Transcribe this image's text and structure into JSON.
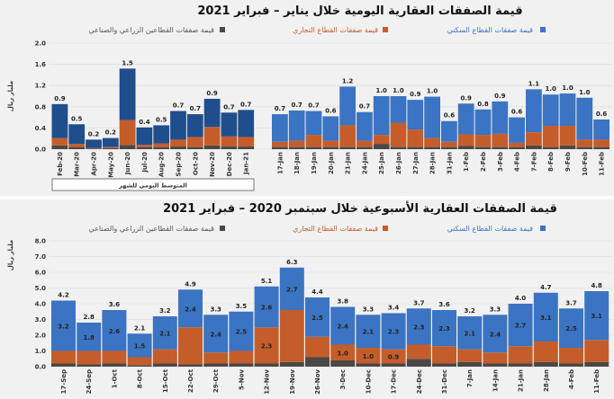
{
  "colors": {
    "residential_monthly": "#1f4e8c",
    "residential": "#3b74c2",
    "commercial": "#c45d2a",
    "agri_industrial": "#4b4845",
    "background": "#f1f1f1"
  },
  "chart_data": [
    {
      "type": "bar",
      "stacked": true,
      "title": "قيمة الصفقات العقارية اليومية خلال يناير – فبراير 2021",
      "ylabel": "مليار ريال",
      "ylim": [
        0,
        2.0
      ],
      "yticks": [
        "0.0",
        "0.4",
        "0.8",
        "1.2",
        "1.6",
        "2.0"
      ],
      "grid": true,
      "legend_position": "top",
      "legend": [
        "قيمة صفقات القطاع السكني",
        "قيمة صفقات القطاع التجاري",
        "قيمة صفقات القطاعين الزراعي والصناعي"
      ],
      "monthly_group_label": "المتوسط اليومي للشهر",
      "monthly": {
        "categories": [
          "Feb-20",
          "Mar-20",
          "Apr-20",
          "May-20",
          "Jun-20",
          "Jul-20",
          "Aug-20",
          "Sep-20",
          "Oct-20",
          "Nov-20",
          "Dec-20",
          "Jan-21"
        ],
        "total_labels": [
          "0.9",
          "0.5",
          "0.2",
          "0.2",
          "1.5",
          "0.4",
          "0.5",
          "0.7",
          "0.7",
          "0.9",
          "0.7",
          "0.7"
        ],
        "series": [
          {
            "name": "قيمة صفقات القطاعين الزراعي والصناعي",
            "values": [
              0.07,
              0.04,
              0.01,
              0.02,
              0.08,
              0.04,
              0.04,
              0.05,
              0.04,
              0.07,
              0.05,
              0.05
            ]
          },
          {
            "name": "قيمة صفقات القطاع التجاري",
            "values": [
              0.14,
              0.06,
              0.01,
              0.02,
              0.47,
              0.04,
              0.07,
              0.13,
              0.19,
              0.35,
              0.19,
              0.18
            ]
          },
          {
            "name": "قيمة صفقات القطاع السكني",
            "values": [
              0.64,
              0.37,
              0.16,
              0.17,
              0.97,
              0.33,
              0.34,
              0.54,
              0.43,
              0.53,
              0.45,
              0.51
            ]
          }
        ]
      },
      "daily": {
        "categories": [
          "17-Jan",
          "18-Jan",
          "19-Jan",
          "20-Jan",
          "21-Jan",
          "24-Jan",
          "25-Jan",
          "26-Jan",
          "27-Jan",
          "28-Jan",
          "31-Jan",
          "1-Feb",
          "2-Feb",
          "3-Feb",
          "4-Feb",
          "7-Feb",
          "8-Feb",
          "9-Feb",
          "10-Feb",
          "11-Feb"
        ],
        "total_labels": [
          "0.7",
          "0.7",
          "0.7",
          "0.6",
          "1.2",
          "0.7",
          "1.0",
          "1.0",
          "0.9",
          "1.0",
          "0.6",
          "0.9",
          "0.8",
          "0.9",
          "0.6",
          "1.1",
          "1.0",
          "1.0",
          "1.0",
          "0.6"
        ],
        "series": [
          {
            "name": "قيمة صفقات القطاعين الزراعي والصناعي",
            "values": [
              0.04,
              0.04,
              0.04,
              0.04,
              0.04,
              0.04,
              0.1,
              0.04,
              0.04,
              0.04,
              0.04,
              0.06,
              0.04,
              0.04,
              0.04,
              0.07,
              0.04,
              0.07,
              0.04,
              0.04
            ]
          },
          {
            "name": "قيمة صفقات القطاع التجاري",
            "values": [
              0.1,
              0.12,
              0.23,
              0.12,
              0.41,
              0.12,
              0.17,
              0.46,
              0.33,
              0.17,
              0.1,
              0.22,
              0.23,
              0.25,
              0.08,
              0.25,
              0.4,
              0.37,
              0.14,
              0.14
            ]
          },
          {
            "name": "قيمة صفقات القطاع السكني",
            "values": [
              0.52,
              0.57,
              0.45,
              0.46,
              0.73,
              0.54,
              0.73,
              0.5,
              0.56,
              0.78,
              0.39,
              0.58,
              0.48,
              0.61,
              0.48,
              0.81,
              0.59,
              0.61,
              0.79,
              0.38
            ]
          }
        ]
      }
    },
    {
      "type": "bar",
      "stacked": true,
      "title": "قيمة الصفقات العقارية الأسبوعية خلال سبتمبر 2020 – فبراير 2021",
      "ylabel": "مليار ريال",
      "ylim": [
        0,
        8.0
      ],
      "yticks": [
        "0.0",
        "1.0",
        "2.0",
        "3.0",
        "4.0",
        "5.0",
        "6.0",
        "7.0",
        "8.0"
      ],
      "grid": true,
      "legend_position": "top",
      "legend": [
        "قيمة صفقات القطاع السكني",
        "قيمة صفقات القطاع التجاري",
        "قيمة صفقات القطاعين الزراعي والصناعي"
      ],
      "categories": [
        "17-Sep",
        "24-Sep",
        "1-Oct",
        "8-Oct",
        "15-Oct",
        "22-Oct",
        "29-Oct",
        "5-Nov",
        "12-Nov",
        "19-Nov",
        "26-Nov",
        "3-Dec",
        "10-Dec",
        "17-Dec",
        "24-Dec",
        "31-Dec",
        "7-Jan",
        "14-Jan",
        "21-Jan",
        "28-Jan",
        "4-Feb",
        "11-Feb"
      ],
      "total_labels": [
        "4.2",
        "2.8",
        "3.6",
        "2.1",
        "3.2",
        "4.9",
        "3.3",
        "3.5",
        "5.1",
        "6.3",
        "4.4",
        "3.8",
        "3.3",
        "3.4",
        "3.7",
        "3.6",
        "3.2",
        "3.3",
        "4.0",
        "4.7",
        "3.7",
        "4.8"
      ],
      "residential_labels": [
        "3.2",
        "1.8",
        "2.6",
        "1.5",
        "2.1",
        "2.4",
        "2.4",
        "2.5",
        "2.6",
        "2.7",
        "2.5",
        "2.4",
        "2.1",
        "2.3",
        "2.3",
        "2.3",
        "2.1",
        "2.4",
        "2.7",
        "3.1",
        "2.5",
        "3.1"
      ],
      "commercial_labels": [
        null,
        null,
        null,
        null,
        null,
        null,
        null,
        null,
        "2.3",
        null,
        null,
        "1.0",
        "1.0",
        "0.9",
        null,
        null,
        null,
        null,
        null,
        null,
        null,
        null
      ],
      "series": [
        {
          "name": "قيمة صفقات القطاعين الزراعي والصناعي",
          "values": [
            0.2,
            0.15,
            0.2,
            0.1,
            0.2,
            0.15,
            0.2,
            0.2,
            0.2,
            0.3,
            0.6,
            0.4,
            0.2,
            0.2,
            0.5,
            0.2,
            0.3,
            0.2,
            0.2,
            0.3,
            0.2,
            0.3
          ]
        },
        {
          "name": "قيمة صفقات القطاع التجاري",
          "values": [
            0.8,
            0.85,
            0.8,
            0.5,
            0.9,
            2.35,
            0.7,
            0.8,
            2.3,
            3.3,
            1.3,
            1.0,
            1.0,
            0.9,
            0.9,
            1.1,
            0.8,
            0.7,
            1.1,
            1.3,
            1.0,
            1.4
          ]
        },
        {
          "name": "قيمة صفقات القطاع السكني",
          "values": [
            3.2,
            1.8,
            2.6,
            1.5,
            2.1,
            2.4,
            2.4,
            2.5,
            2.6,
            2.7,
            2.5,
            2.4,
            2.1,
            2.3,
            2.3,
            2.3,
            2.1,
            2.4,
            2.7,
            3.1,
            2.5,
            3.1
          ]
        }
      ]
    }
  ]
}
